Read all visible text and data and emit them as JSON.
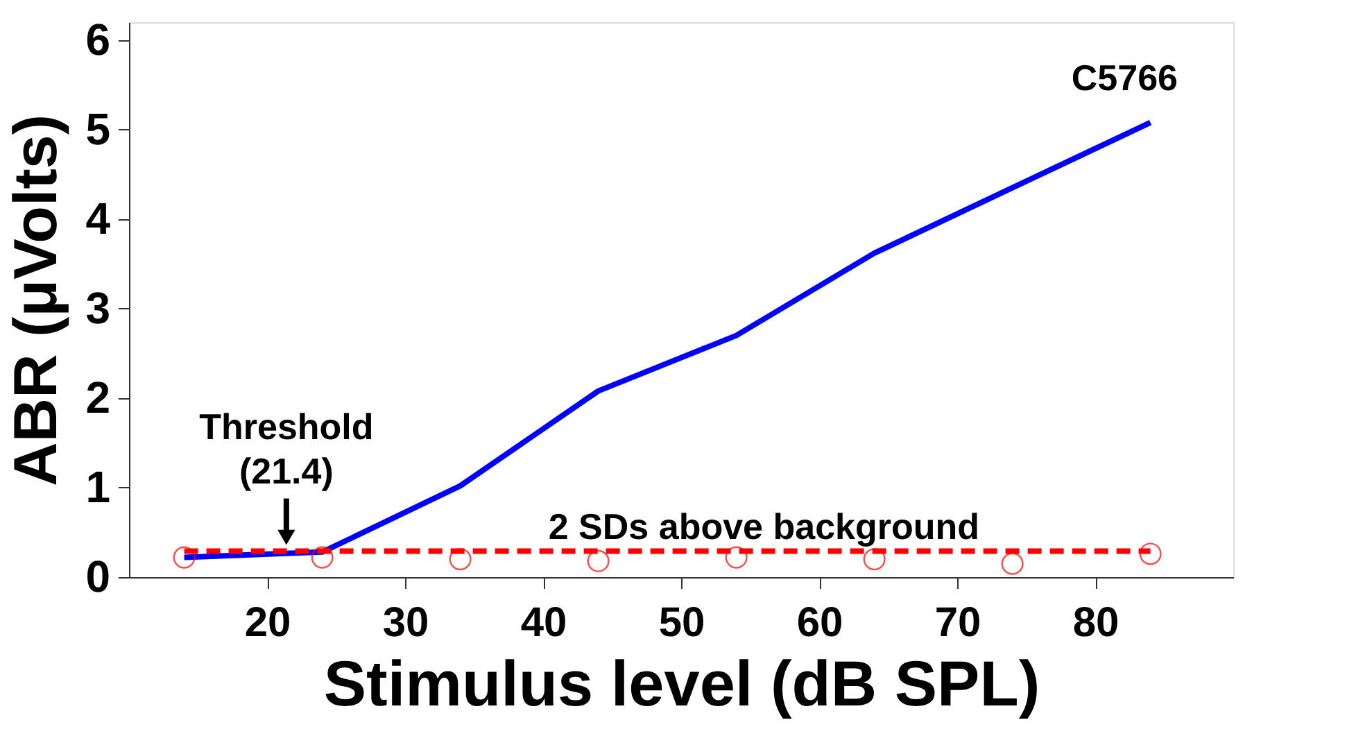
{
  "chart_data": {
    "type": "line",
    "xlabel": "Stimulus level (dB SPL)",
    "ylabel": "ABR (μVolts)",
    "xlim": [
      10,
      90
    ],
    "xticks": [
      20,
      30,
      40,
      50,
      60,
      70,
      80
    ],
    "ylim": [
      0,
      6.2
    ],
    "yticks": [
      0,
      1,
      2,
      3,
      4,
      5,
      6
    ],
    "grid": false,
    "series": [
      {
        "color": "#0000ff",
        "line_style": "solid",
        "marker": "none",
        "x": [
          14,
          24,
          34,
          44,
          54,
          64,
          74,
          84
        ],
        "values": [
          0.22,
          0.28,
          1.02,
          2.08,
          2.7,
          3.62,
          4.35,
          5.08
        ]
      },
      {
        "type": "line",
        "color": "#ff0000",
        "line_style": "dashed",
        "marker": "none",
        "x": [
          14,
          84
        ],
        "values": [
          0.29,
          0.29
        ]
      },
      {
        "type": "scatter",
        "color": "#ff0000",
        "marker": "circle",
        "x": [
          14,
          24,
          34,
          44,
          54,
          64,
          74,
          84
        ],
        "values": [
          0.22,
          0.22,
          0.2,
          0.18,
          0.22,
          0.2,
          0.15,
          0.26
        ]
      }
    ],
    "annotations": [
      {
        "text": "Threshold\n(21.4)",
        "x": 21.4,
        "y": 0.29
      },
      {
        "text": "2 SDs above background",
        "x": 56,
        "y": 0.29
      },
      "C5766"
    ]
  }
}
